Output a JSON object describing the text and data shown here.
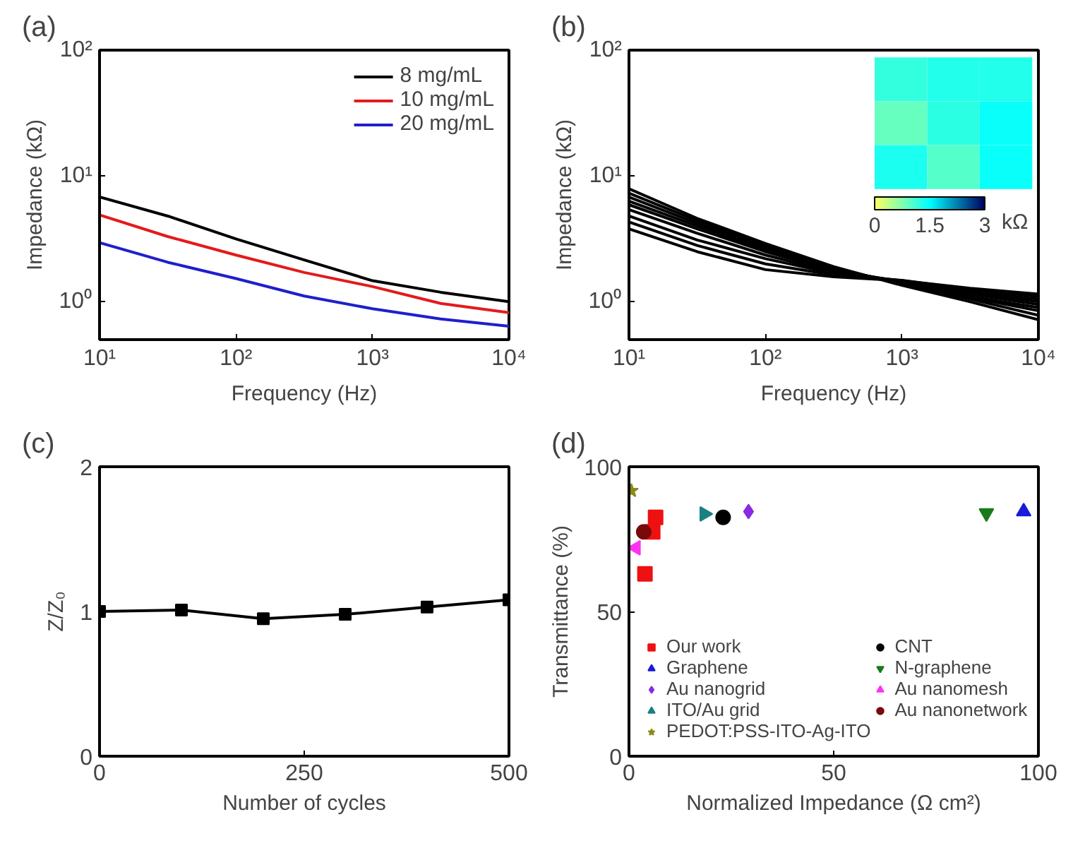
{
  "chart_data": [
    {
      "type": "line",
      "title": "(a)",
      "xlabel": "Frequency (Hz)",
      "ylabel": "Impedance (kΩ)",
      "log": "xy",
      "xlim": [
        10,
        10000
      ],
      "ylim": [
        0.5,
        100
      ],
      "xticks": [
        {
          "value": 10,
          "label": "10¹"
        },
        {
          "value": 100,
          "label": "10²"
        },
        {
          "value": 1000,
          "label": "10³"
        },
        {
          "value": 10000,
          "label": "10⁴"
        }
      ],
      "yticks": [
        {
          "value": 1,
          "label": "10⁰"
        },
        {
          "value": 10,
          "label": "10¹"
        },
        {
          "value": 100,
          "label": "10²"
        }
      ],
      "grid": false,
      "legend": "top right",
      "x": [
        10,
        31.6,
        100,
        316,
        1000,
        3162,
        10000
      ],
      "series": [
        {
          "name": "8 mg/mL",
          "color": "#000000",
          "values": [
            6.8,
            4.8,
            3.16,
            2.15,
            1.47,
            1.19,
            1.0
          ]
        },
        {
          "name": "10 mg/mL",
          "color": "#e31a1c",
          "values": [
            4.9,
            3.3,
            2.35,
            1.71,
            1.32,
            0.97,
            0.82
          ]
        },
        {
          "name": "20 mg/mL",
          "color": "#1f1fcc",
          "values": [
            2.95,
            2.06,
            1.53,
            1.11,
            0.88,
            0.73,
            0.64
          ]
        }
      ]
    },
    {
      "type": "line",
      "title": "(b)",
      "xlabel": "Frequency (Hz)",
      "ylabel": "Impedance (kΩ)",
      "log": "xy",
      "xlim": [
        10,
        10000
      ],
      "ylim": [
        0.5,
        100
      ],
      "xticks": [
        {
          "value": 10,
          "label": "10¹"
        },
        {
          "value": 100,
          "label": "10²"
        },
        {
          "value": 1000,
          "label": "10³"
        },
        {
          "value": 10000,
          "label": "10⁴"
        }
      ],
      "yticks": [
        {
          "value": 1,
          "label": "10⁰"
        },
        {
          "value": 10,
          "label": "10¹"
        },
        {
          "value": 100,
          "label": "10²"
        }
      ],
      "grid": false,
      "x": [
        10,
        31.6,
        100,
        316,
        1000,
        3162,
        10000
      ],
      "series": [
        {
          "color": "#000000",
          "values": [
            7.9,
            4.6,
            2.9,
            1.9,
            1.35,
            1.0,
            0.72
          ]
        },
        {
          "color": "#000000",
          "values": [
            7.3,
            4.4,
            2.8,
            1.85,
            1.38,
            1.05,
            0.78
          ]
        },
        {
          "color": "#000000",
          "values": [
            6.8,
            4.2,
            2.7,
            1.82,
            1.4,
            1.08,
            0.85
          ]
        },
        {
          "color": "#000000",
          "values": [
            6.3,
            4.0,
            2.6,
            1.8,
            1.42,
            1.1,
            0.9
          ]
        },
        {
          "color": "#000000",
          "values": [
            5.9,
            3.8,
            2.5,
            1.77,
            1.45,
            1.15,
            0.95
          ]
        },
        {
          "color": "#000000",
          "values": [
            5.4,
            3.5,
            2.35,
            1.72,
            1.45,
            1.18,
            1.0
          ]
        },
        {
          "color": "#000000",
          "values": [
            4.8,
            3.1,
            2.2,
            1.68,
            1.47,
            1.2,
            1.05
          ]
        },
        {
          "color": "#000000",
          "values": [
            4.3,
            2.8,
            2.0,
            1.63,
            1.48,
            1.25,
            1.1
          ]
        },
        {
          "color": "#000000",
          "values": [
            3.8,
            2.5,
            1.8,
            1.58,
            1.47,
            1.28,
            1.15
          ]
        }
      ]
    },
    {
      "type": "heatmap",
      "categories": [
        null,
        null,
        null
      ],
      "y_categories": [
        null,
        null,
        null
      ],
      "cells": [
        [
          1.2,
          1.3,
          1.3
        ],
        [
          0.9,
          1.25,
          1.45
        ],
        [
          1.35,
          1.0,
          1.45
        ]
      ],
      "clim": [
        0,
        3
      ],
      "cticks": [
        0,
        1.5,
        3
      ],
      "clabel": "kΩ"
    },
    {
      "type": "line",
      "title": "(c)",
      "xlabel": "Number of cycles",
      "ylabel": "Z/Z₀",
      "xlim": [
        0,
        500
      ],
      "ylim": [
        0,
        2
      ],
      "xticks": [
        0,
        250,
        500
      ],
      "yticks": [
        0,
        1,
        2
      ],
      "grid": false,
      "marker": "square",
      "x": [
        0,
        100,
        200,
        300,
        400,
        500
      ],
      "series": [
        {
          "color": "#000000",
          "values": [
            1.0,
            1.01,
            0.95,
            0.98,
            1.03,
            1.08
          ]
        }
      ]
    },
    {
      "type": "scatter",
      "title": "(d)",
      "xlabel": "Normalized Impedance (Ω cm²)",
      "ylabel": "Transmittance (%)",
      "xlim": [
        0,
        100
      ],
      "ylim": [
        0,
        100
      ],
      "xticks": [
        0,
        50,
        100
      ],
      "yticks": [
        0,
        50,
        100
      ],
      "grid": false,
      "legend": "bottom left",
      "series": [
        {
          "name": "Our work",
          "color": "#ee1111",
          "marker": "square",
          "x": [
            6.5,
            5.8,
            3.9
          ],
          "values": [
            82.5,
            77.5,
            63
          ]
        },
        {
          "name": "CNT",
          "color": "#000000",
          "marker": "circle",
          "x": [
            23
          ],
          "values": [
            82.5
          ]
        },
        {
          "name": "Graphene",
          "color": "#1a1ad9",
          "marker": "triangle",
          "x": [
            96.4
          ],
          "values": [
            84.5
          ]
        },
        {
          "name": "N-graphene",
          "color": "#1a7a1a",
          "marker": "triangle_down",
          "x": [
            87.3
          ],
          "values": [
            84
          ]
        },
        {
          "name": "Au nanogrid",
          "color": "#8a2be2",
          "marker": "diamond",
          "x": [
            29.2
          ],
          "values": [
            84.5
          ]
        },
        {
          "name": "Au nanomesh",
          "color": "#ff33ee",
          "marker": "triangle_left",
          "x": [
            1.7
          ],
          "values": [
            72
          ]
        },
        {
          "name": "ITO/Au grid",
          "color": "#1a8080",
          "marker": "triangle_right",
          "x": [
            18.4
          ],
          "values": [
            83.7
          ]
        },
        {
          "name": "Au nanonetwork",
          "color": "#7a0a0a",
          "marker": "circle",
          "x": [
            3.6
          ],
          "values": [
            77.5
          ]
        },
        {
          "name": "PEDOT:PSS-ITO-Ag-ITO",
          "color": "#8a8a1a",
          "marker": "star",
          "x": [
            0.6
          ],
          "values": [
            91.7
          ]
        }
      ]
    }
  ]
}
